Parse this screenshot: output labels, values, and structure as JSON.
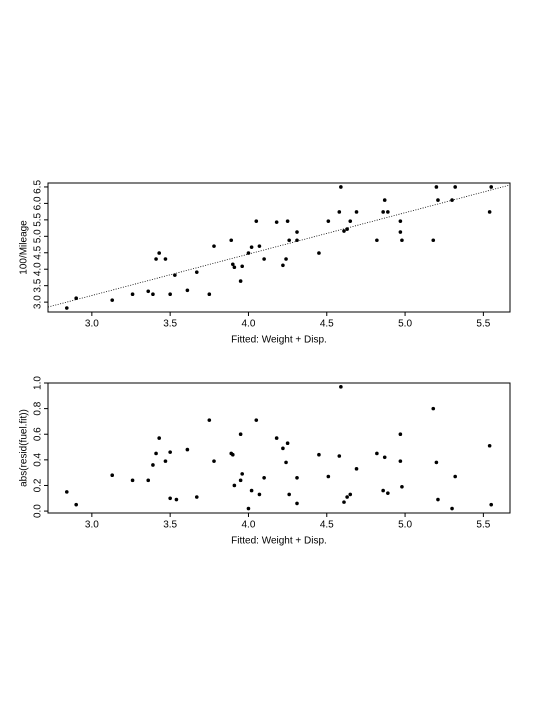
{
  "chart_data": [
    {
      "type": "scatter",
      "xlabel": "Fitted: Weight + Disp.",
      "ylabel": "100/Mileage",
      "xlim": [
        2.72,
        5.67
      ],
      "ylim": [
        2.7,
        6.62
      ],
      "xticks": [
        {
          "value": 3,
          "label": "3.0"
        },
        3.5,
        {
          "value": 4,
          "label": "4.0"
        },
        4.5,
        {
          "value": 5,
          "label": "5.0"
        },
        5.5
      ],
      "yticks": [
        {
          "value": 3,
          "label": "3.0"
        },
        3.5,
        {
          "value": 4,
          "label": "4.0"
        },
        4.5,
        {
          "value": 5,
          "label": "5.0"
        },
        5.5,
        {
          "value": 6,
          "label": "6.0"
        },
        6.5
      ],
      "color": "#000000",
      "fit_line": {
        "x": [
          2.72,
          5.67
        ],
        "y": [
          2.85,
          6.56
        ]
      },
      "x": [
        2.84,
        2.9,
        3.13,
        3.26,
        3.36,
        3.39,
        3.41,
        3.43,
        3.47,
        3.5,
        3.53,
        3.61,
        3.67,
        3.75,
        3.78,
        3.89,
        3.9,
        3.91,
        3.95,
        3.96,
        4.0,
        4.02,
        4.05,
        4.07,
        4.1,
        4.18,
        4.22,
        4.24,
        4.25,
        4.26,
        4.31,
        4.31,
        4.45,
        4.51,
        4.58,
        4.59,
        4.61,
        4.63,
        4.65,
        4.69,
        4.82,
        4.86,
        4.87,
        4.89,
        4.97,
        4.97,
        4.98,
        5.18,
        5.2,
        5.21,
        5.3,
        5.32,
        5.54,
        5.55
      ],
      "values": [
        2.82,
        3.12,
        3.06,
        3.24,
        3.33,
        3.24,
        4.31,
        4.49,
        4.31,
        3.24,
        3.82,
        3.36,
        3.91,
        3.24,
        4.7,
        4.88,
        4.15,
        4.06,
        3.64,
        4.09,
        4.49,
        4.67,
        5.46,
        4.7,
        4.31,
        5.43,
        4.12,
        4.31,
        5.46,
        4.88,
        5.13,
        4.88,
        4.49,
        5.46,
        5.74,
        6.5,
        5.16,
        5.22,
        5.46,
        5.74,
        4.88,
        5.74,
        6.1,
        5.74,
        5.46,
        5.13,
        4.88,
        4.88,
        6.5,
        6.1,
        6.1,
        6.5,
        5.74,
        6.5
      ]
    },
    {
      "type": "scatter",
      "xlabel": "Fitted: Weight + Disp.",
      "ylabel": "abs(resid(fuel.fit))",
      "xlim": [
        2.72,
        5.67
      ],
      "ylim": [
        -0.015,
        1.0
      ],
      "xticks": [
        {
          "value": 3,
          "label": "3.0"
        },
        3.5,
        {
          "value": 4,
          "label": "4.0"
        },
        4.5,
        {
          "value": 5,
          "label": "5.0"
        },
        5.5
      ],
      "yticks": [
        {
          "value": 0,
          "label": "0.0"
        },
        0.2,
        0.4,
        0.6,
        0.8,
        {
          "value": 1,
          "label": "1.0"
        }
      ],
      "color": "#000000",
      "reference_line": 1,
      "x": [
        2.84,
        2.9,
        3.13,
        3.26,
        3.36,
        3.39,
        3.41,
        3.43,
        3.47,
        3.5,
        3.5,
        3.54,
        3.61,
        3.67,
        3.75,
        3.78,
        3.89,
        3.9,
        3.91,
        3.95,
        3.95,
        3.96,
        4.0,
        4.02,
        4.05,
        4.07,
        4.1,
        4.18,
        4.22,
        4.24,
        4.25,
        4.26,
        4.31,
        4.31,
        4.45,
        4.51,
        4.58,
        4.59,
        4.61,
        4.63,
        4.65,
        4.69,
        4.82,
        4.86,
        4.87,
        4.89,
        4.97,
        4.97,
        4.98,
        5.18,
        5.2,
        5.21,
        5.3,
        5.32,
        5.54,
        5.55
      ],
      "values": [
        0.15,
        0.05,
        0.28,
        0.24,
        0.24,
        0.36,
        0.45,
        0.57,
        0.39,
        0.46,
        0.1,
        0.09,
        0.48,
        0.11,
        0.71,
        0.39,
        0.45,
        0.44,
        0.2,
        0.24,
        0.6,
        0.29,
        0.02,
        0.16,
        0.71,
        0.13,
        0.26,
        0.57,
        0.49,
        0.38,
        0.53,
        0.13,
        0.26,
        0.06,
        0.44,
        0.27,
        0.43,
        0.97,
        0.07,
        0.11,
        0.13,
        0.33,
        0.45,
        0.16,
        0.42,
        0.14,
        0.39,
        0.6,
        0.19,
        0.8,
        0.38,
        0.09,
        0.02,
        0.27,
        0.51,
        0.05
      ]
    }
  ]
}
